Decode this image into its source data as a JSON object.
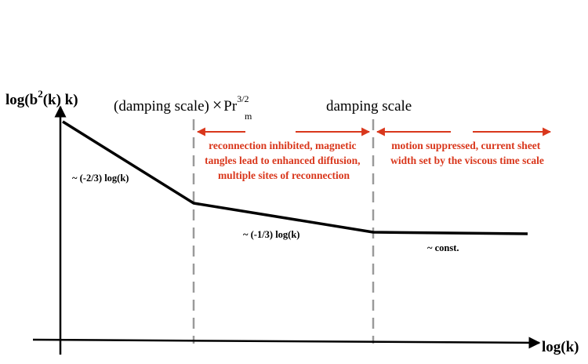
{
  "diagram": {
    "y_axis_label": {
      "prefix": "log(b",
      "superscript": "2",
      "suffix": "(k) k)"
    },
    "x_axis_label": "log(k)",
    "left_scale_label": {
      "main": "(damping scale)",
      "operator": "×",
      "symbol": "Pr",
      "superscript": "3/2",
      "subscript": "m"
    },
    "right_scale_label": "damping scale",
    "segment_labels": {
      "steep": "~ (-2/3) log(k)",
      "shallow": "~ (-1/3) log(k)",
      "flat": "~ const."
    },
    "annotations": {
      "middle": [
        "reconnection inhibited, magnetic",
        "tangles lead to enhanced diffusion,",
        "multiple sites of reconnection"
      ],
      "right": [
        "motion suppressed, current sheet",
        "width set by the viscous time scale"
      ]
    },
    "colors": {
      "curve": "#000000",
      "axis": "#000000",
      "dashed_line": "#9a9a9a",
      "annotation": "#d9371c"
    }
  }
}
